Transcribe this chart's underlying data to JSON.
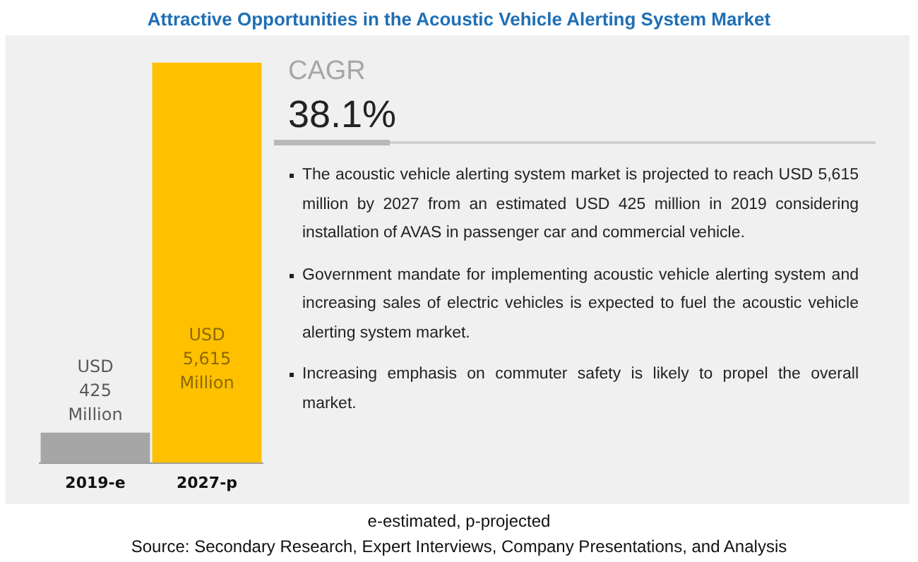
{
  "chart_data": {
    "type": "bar",
    "title": "Attractive Opportunities in the Acoustic Vehicle Alerting System Market",
    "categories": [
      "2019-e",
      "2027-p"
    ],
    "values": [
      425,
      5615
    ],
    "colors": [
      "#a6a6a6",
      "#ffc000"
    ],
    "value_labels": [
      "USD 425 Million",
      "USD 5,615 Million"
    ],
    "tick_labels": "x",
    "grid": false,
    "legend": false,
    "annotations": [
      "CAGR",
      "38.1%",
      "The acoustic vehicle alerting system market is projected to reach USD 5,615 million by 2027 from an estimated USD 425 million in 2019 considering installation of AVAS in passenger car and commercial vehicle.",
      "Government mandate for implementing acoustic vehicle alerting system and increasing sales of electric vehicles is expected to fuel the acoustic vehicle alerting system market.",
      "Increasing emphasis on commuter safety is likely to propel the overall market.",
      "e-estimated, p-projected",
      "Source: Secondary Research, Expert Interviews, Company Presentations, and Analysis"
    ]
  }
}
